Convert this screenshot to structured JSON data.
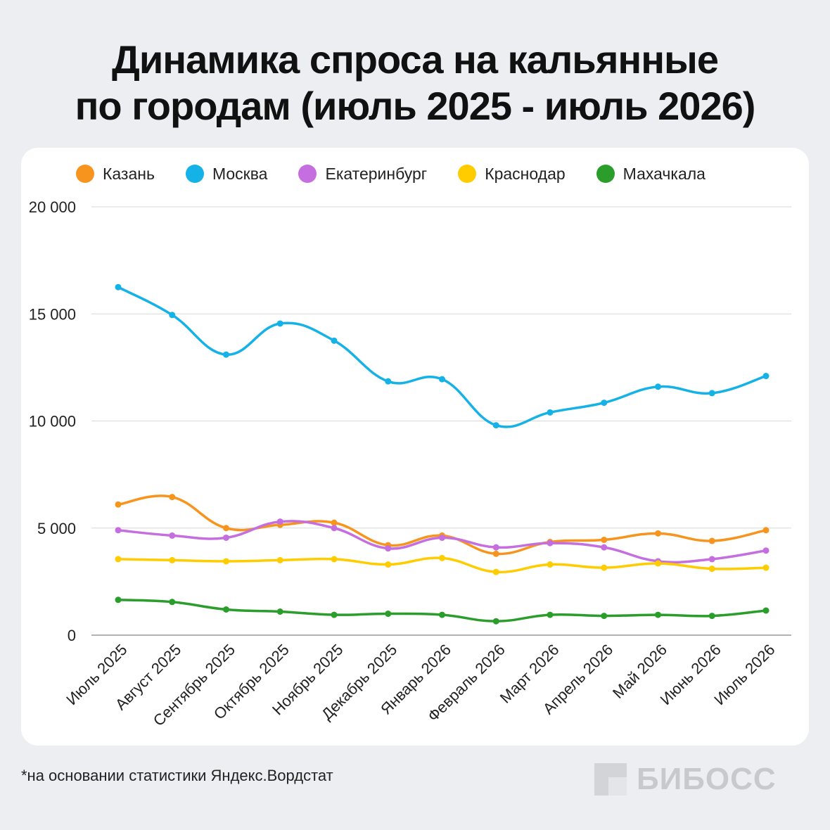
{
  "title_line1": "Динамика спроса на кальянные",
  "title_line2": "по городам (июль 2025 - июль 2026)",
  "footnote": "*на основании статистики Яндекс.Вордстат",
  "brand": "БИБОСС",
  "chart_data": {
    "type": "line",
    "x": [
      "Июль 2025",
      "Август 2025",
      "Сентябрь 2025",
      "Октябрь 2025",
      "Ноябрь 2025",
      "Декабрь 2025",
      "Январь 2026",
      "Февраль 2026",
      "Март 2026",
      "Апрель 2026",
      "Май 2026",
      "Июнь 2026",
      "Июль 2026"
    ],
    "ylim": [
      0,
      20000
    ],
    "yticks": [
      {
        "value": 0,
        "label": "0"
      },
      {
        "value": 5000,
        "label": "5 000"
      },
      {
        "value": 10000,
        "label": "10 000"
      },
      {
        "value": 15000,
        "label": "15 000"
      },
      {
        "value": 20000,
        "label": "20 000"
      }
    ],
    "grid": true,
    "legend_position": "top",
    "series": [
      {
        "name": "Казань",
        "color": "#f7941d",
        "values": [
          6100,
          6450,
          5000,
          5150,
          5250,
          4200,
          4650,
          3800,
          4350,
          4450,
          4750,
          4400,
          4900
        ]
      },
      {
        "name": "Москва",
        "color": "#14b2e6",
        "values": [
          16250,
          14950,
          13100,
          14550,
          13750,
          11850,
          11950,
          9800,
          10400,
          10850,
          11600,
          11300,
          12100
        ]
      },
      {
        "name": "Екатеринбург",
        "color": "#c56ee0",
        "values": [
          4900,
          4650,
          4550,
          5300,
          5000,
          4050,
          4550,
          4100,
          4300,
          4100,
          3450,
          3550,
          3950
        ]
      },
      {
        "name": "Краснодар",
        "color": "#ffcc00",
        "values": [
          3550,
          3500,
          3450,
          3500,
          3550,
          3300,
          3600,
          2950,
          3300,
          3150,
          3350,
          3100,
          3150
        ]
      },
      {
        "name": "Махачкала",
        "color": "#2a9d2a",
        "values": [
          1650,
          1550,
          1200,
          1100,
          950,
          1000,
          950,
          650,
          950,
          900,
          950,
          900,
          1150
        ]
      }
    ]
  }
}
